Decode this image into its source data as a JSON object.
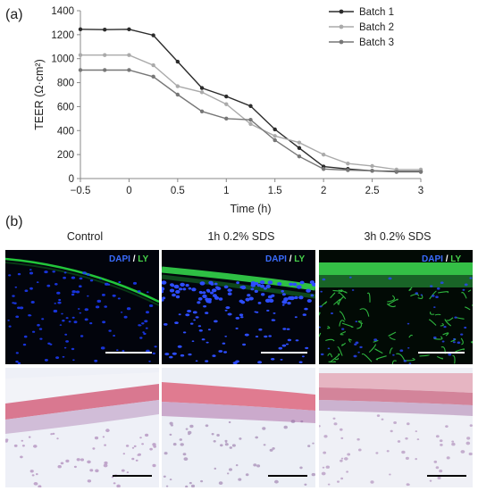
{
  "panels": {
    "a": "(a)",
    "b": "(b)"
  },
  "chart_data": {
    "type": "line",
    "xlabel": "Time (h)",
    "ylabel": "TEER (Ω·cm²)",
    "xlim": [
      -0.5,
      3
    ],
    "ylim": [
      0,
      1400
    ],
    "xticks": [
      -0.5,
      0,
      0.5,
      1,
      1.5,
      2,
      2.5,
      3
    ],
    "xtick_labels": [
      "−0.5",
      "0",
      "0.5",
      "1",
      "1.5",
      "2",
      "2.5",
      "3"
    ],
    "yticks": [
      0,
      200,
      400,
      600,
      800,
      1000,
      1200,
      1400
    ],
    "grid": false,
    "legend": "top-right",
    "x": [
      -0.5,
      -0.25,
      0,
      0.25,
      0.5,
      0.75,
      1,
      1.25,
      1.5,
      1.75,
      2,
      2.25,
      2.5,
      2.75,
      3
    ],
    "series": [
      {
        "name": "Batch 1",
        "color": "#2b2b2b",
        "values": [
          1245,
          1242,
          1245,
          1195,
          975,
          755,
          685,
          605,
          410,
          255,
          100,
          80,
          65,
          60,
          60
        ]
      },
      {
        "name": "Batch 2",
        "color": "#aaaaaa",
        "values": [
          1030,
          1030,
          1030,
          945,
          770,
          720,
          620,
          455,
          355,
          300,
          200,
          125,
          105,
          75,
          75
        ]
      },
      {
        "name": "Batch 3",
        "color": "#777777",
        "values": [
          905,
          905,
          905,
          850,
          700,
          560,
          500,
          490,
          320,
          185,
          80,
          70,
          65,
          55,
          55
        ]
      }
    ]
  },
  "micrographs": {
    "columns": [
      "Control",
      "1h 0.2% SDS",
      "3h 0.2% SDS"
    ],
    "stain": {
      "dapi": "DAPI",
      "sep": "/",
      "ly": "LY"
    }
  }
}
